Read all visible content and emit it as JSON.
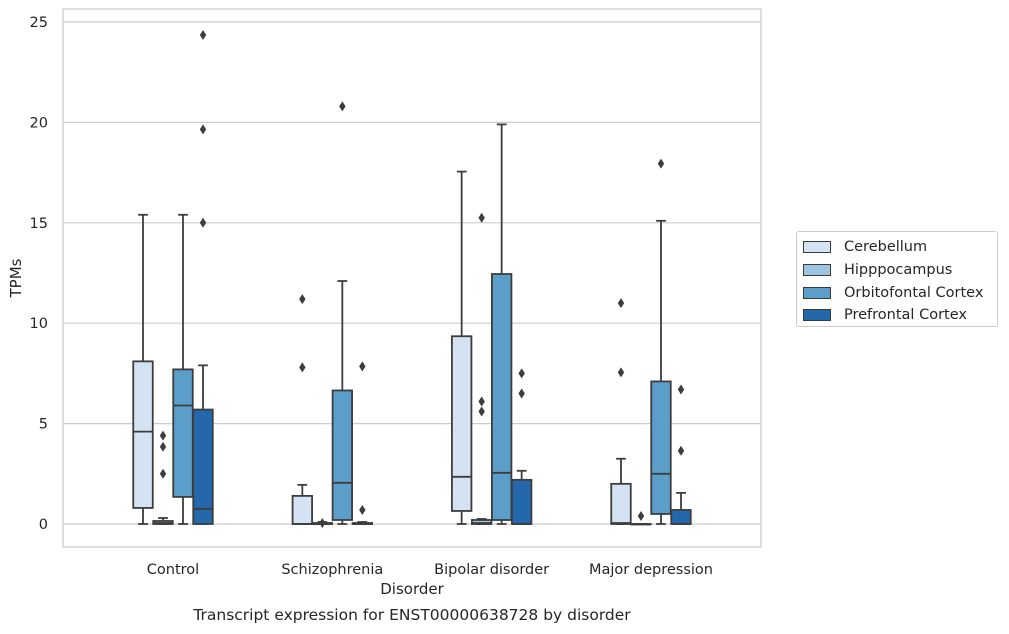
{
  "caption": "Transcript expression for ENST00000638728 by disorder",
  "chart_data": {
    "type": "boxplot",
    "xlabel": "Disorder",
    "ylabel": "TPMs",
    "ylim": [
      -1.2,
      25.6
    ],
    "yticks": [
      0,
      5,
      10,
      15,
      20,
      25
    ],
    "grid": "horizontal",
    "legend_position": "right",
    "categories": [
      "Control",
      "Schizophrenia",
      "Bipolar disorder",
      "Major depression"
    ],
    "series": [
      {
        "name": "Cerebellum",
        "color": "#d4e3f3",
        "boxes": [
          {
            "whislo": 0,
            "q1": 0.8,
            "med": 4.6,
            "q3": 8.1,
            "whishi": 15.4,
            "fliers": []
          },
          {
            "whislo": 0,
            "q1": 0,
            "med": 0,
            "q3": 1.4,
            "whishi": 1.95,
            "fliers": [
              7.8,
              11.2
            ]
          },
          {
            "whislo": 0,
            "q1": 0.65,
            "med": 2.35,
            "q3": 9.35,
            "whishi": 17.55,
            "fliers": []
          },
          {
            "whislo": 0,
            "q1": 0,
            "med": 0.05,
            "q3": 2.0,
            "whishi": 3.25,
            "fliers": [
              7.55,
              11.0
            ]
          }
        ]
      },
      {
        "name": "Hipppocampus",
        "color": "#9dc4e1",
        "boxes": [
          {
            "whislo": 0,
            "q1": 0,
            "med": 0.05,
            "q3": 0.15,
            "whishi": 0.3,
            "fliers": [
              2.5,
              3.85,
              4.4
            ]
          },
          {
            "whislo": 0,
            "q1": 0,
            "med": 0,
            "q3": 0.05,
            "whishi": 0.1,
            "fliers": [
              0.05
            ]
          },
          {
            "whislo": 0,
            "q1": 0,
            "med": 0.05,
            "q3": 0.2,
            "whishi": 0.25,
            "fliers": [
              5.6,
              6.1,
              15.25
            ]
          },
          {
            "whislo": 0,
            "q1": 0,
            "med": 0,
            "q3": 0,
            "whishi": 0,
            "fliers": [
              0.4
            ]
          }
        ]
      },
      {
        "name": "Orbitofontal Cortex",
        "color": "#5b9ec9",
        "boxes": [
          {
            "whislo": 0,
            "q1": 1.35,
            "med": 5.9,
            "q3": 7.7,
            "whishi": 15.4,
            "fliers": []
          },
          {
            "whislo": 0,
            "q1": 0.2,
            "med": 2.05,
            "q3": 6.65,
            "whishi": 12.1,
            "fliers": [
              20.8
            ]
          },
          {
            "whislo": 0,
            "q1": 0.2,
            "med": 2.55,
            "q3": 12.45,
            "whishi": 19.9,
            "fliers": []
          },
          {
            "whislo": 0,
            "q1": 0.5,
            "med": 2.5,
            "q3": 7.1,
            "whishi": 15.1,
            "fliers": [
              17.95
            ]
          }
        ]
      },
      {
        "name": "Prefrontal Cortex",
        "color": "#2468ac",
        "boxes": [
          {
            "whislo": 0,
            "q1": 0,
            "med": 0.75,
            "q3": 5.7,
            "whishi": 7.9,
            "fliers": [
              15.0,
              19.65,
              24.35
            ]
          },
          {
            "whislo": 0,
            "q1": 0,
            "med": 0,
            "q3": 0.05,
            "whishi": 0.1,
            "fliers": [
              0.7,
              7.85
            ]
          },
          {
            "whislo": 0,
            "q1": 0,
            "med": 0,
            "q3": 2.2,
            "whishi": 2.65,
            "fliers": [
              6.5,
              7.5
            ]
          },
          {
            "whislo": 0,
            "q1": 0,
            "med": 0,
            "q3": 0.7,
            "whishi": 1.55,
            "fliers": [
              3.65,
              6.7
            ]
          }
        ]
      }
    ]
  }
}
